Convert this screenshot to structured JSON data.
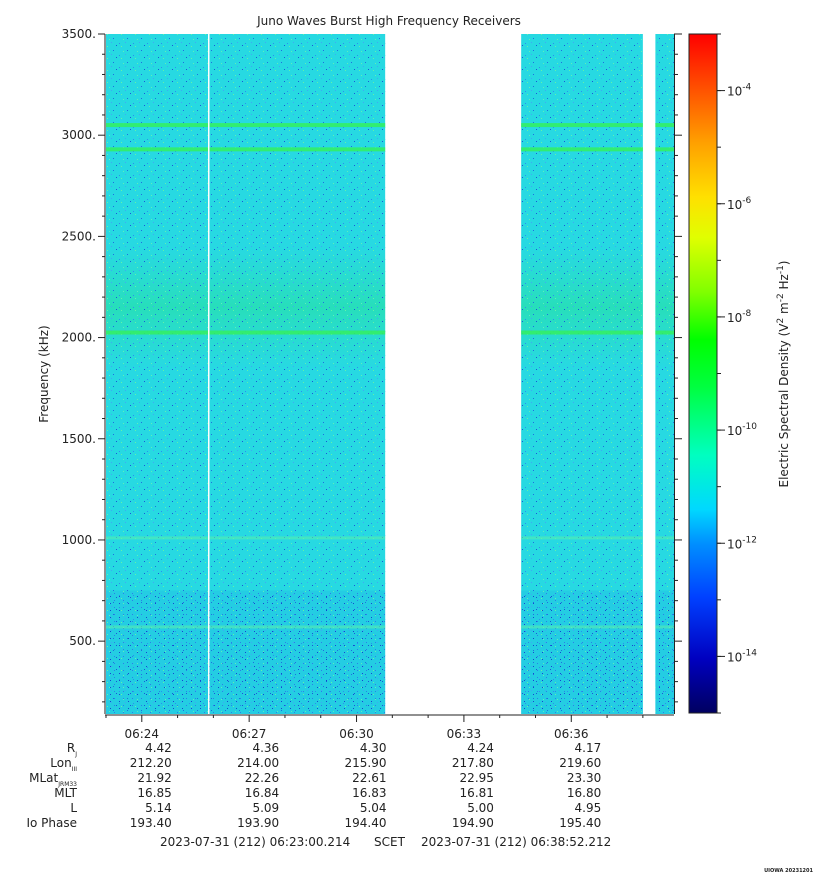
{
  "chart_data": {
    "type": "heatmap",
    "title": "Juno Waves Burst High Frequency Receivers",
    "ylabel": "Frequency (kHz)",
    "ylim": [
      140,
      3500
    ],
    "y_ticks": [
      500,
      1000,
      1500,
      2000,
      2500,
      3000,
      3500
    ],
    "y_tick_labels": [
      "500.",
      "1000.",
      "1500.",
      "2000.",
      "2500.",
      "3000.",
      "3500."
    ],
    "x_range_minutes": [
      383.0,
      398.87
    ],
    "x_ticks_minutes": [
      384,
      387,
      390,
      393,
      396
    ],
    "x_tick_labels": [
      "06:24",
      "06:27",
      "06:30",
      "06:33",
      "06:36"
    ],
    "data_segments_minutes": [
      [
        383.0,
        390.8
      ],
      [
        394.6,
        398.0
      ],
      [
        398.35,
        398.87
      ]
    ],
    "colorbar": {
      "label": "Electric Spectral Density (V2 m-2 Hz-1)",
      "label_parts": {
        "prefix": "Electric Spectral Density (V",
        "s1": "2",
        "m": " m",
        "s2": "-2",
        "hz": " Hz",
        "s3": "-1",
        "suffix": ")"
      },
      "scale": "log",
      "range_exponent": [
        -15,
        -3
      ],
      "tick_exponents": [
        -4,
        -6,
        -8,
        -10,
        -12,
        -14
      ],
      "tick_base": "10",
      "tick_labels": [
        "-4",
        "-6",
        "-8",
        "-10",
        "-12",
        "-14"
      ],
      "colormap": [
        "#000080",
        "#0000ff",
        "#0080ff",
        "#00e0ff",
        "#00ff80",
        "#00ff00",
        "#80ff00",
        "#ffff00",
        "#ffc000",
        "#ff6000",
        "#ff0000"
      ]
    },
    "background_level_exponent": -12,
    "emission_lines_khz": [
      3050,
      2930,
      2025,
      1010,
      570
    ],
    "emission_band_khz": [
      1850,
      2450
    ]
  },
  "ephemeris": {
    "rows": [
      {
        "label": "R",
        "sub": "J",
        "values": [
          "4.42",
          "4.36",
          "4.30",
          "4.24",
          "4.17"
        ]
      },
      {
        "label": "Lon",
        "sub": "III",
        "values": [
          "212.20",
          "214.00",
          "215.90",
          "217.80",
          "219.60"
        ]
      },
      {
        "label": "MLat",
        "sub": "JRM33",
        "values": [
          "21.92",
          "22.26",
          "22.61",
          "22.95",
          "23.30"
        ]
      },
      {
        "label": "MLT",
        "sub": "",
        "values": [
          "16.85",
          "16.84",
          "16.83",
          "16.81",
          "16.80"
        ]
      },
      {
        "label": "L",
        "sub": "",
        "values": [
          "5.14",
          "5.09",
          "5.04",
          "5.00",
          "4.95"
        ]
      },
      {
        "label": "Io Phase",
        "sub": "",
        "values": [
          "193.40",
          "193.90",
          "194.40",
          "194.90",
          "195.40"
        ]
      }
    ]
  },
  "time_footer": {
    "start": "2023-07-31 (212) 06:23:00.214",
    "scet": "SCET",
    "end": "2023-07-31 (212) 06:38:52.212"
  },
  "credit": "UIOWA 20231201"
}
